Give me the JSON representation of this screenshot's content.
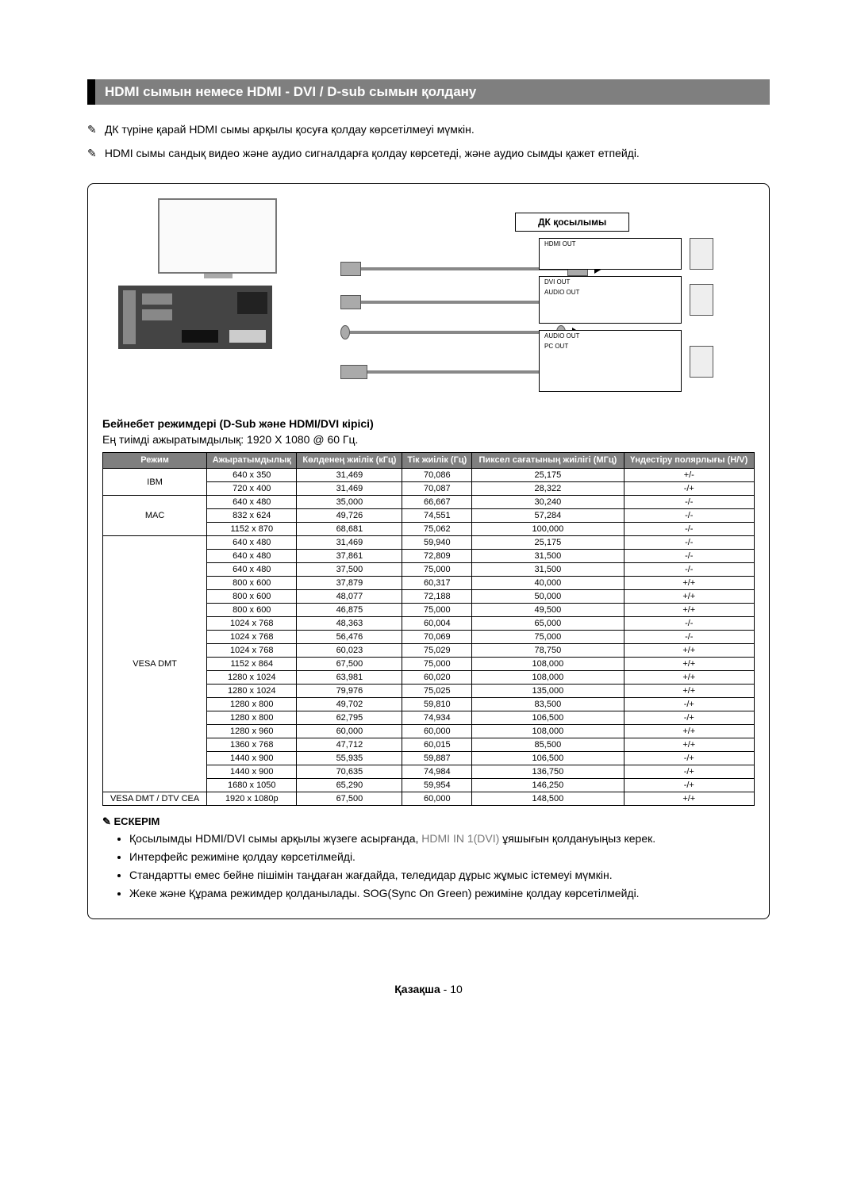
{
  "title": "HDMI сымын немесе HDMI - DVI / D-sub сымын қолдану",
  "intro_notes": [
    "ДК түріне қарай HDMI сымы арқылы қосуға қолдау көрсетілмеуі мүмкін.",
    "HDMI сымы сандық видео және аудио сигналдарға қолдау көрсетеді, және аудио сымды қажет етпейді."
  ],
  "diagram": {
    "dk_label": "ДК қосылымы",
    "port_labels": {
      "hdmi_out": "HDMI OUT",
      "dvi_out": "DVI OUT",
      "audio_out": "AUDIO OUT",
      "pc_out": "PC OUT"
    }
  },
  "sub_heading": "Бейнебет режимдері (D-Sub және HDMI/DVI кірісі)",
  "sub_desc": "Ең тиімді ажыратымдылық: 1920 X 1080 @ 60 Гц.",
  "table": {
    "headers": {
      "mode": "Режим",
      "resolution": "Ажыратымдылық",
      "hfreq": "Көлденең жиілік (кГц)",
      "vfreq": "Тік жиілік (Гц)",
      "pixclock": "Пиксел сағатының жиілігі (МГц)",
      "sync": "Үндестіру полярлығы (H/V)"
    },
    "groups": [
      {
        "mode": "IBM",
        "rows": [
          {
            "res": "640 x 350",
            "h": "31,469",
            "v": "70,086",
            "p": "25,175",
            "s": "+/-"
          },
          {
            "res": "720 x 400",
            "h": "31,469",
            "v": "70,087",
            "p": "28,322",
            "s": "-/+"
          }
        ]
      },
      {
        "mode": "MAC",
        "rows": [
          {
            "res": "640 x 480",
            "h": "35,000",
            "v": "66,667",
            "p": "30,240",
            "s": "-/-"
          },
          {
            "res": "832 x 624",
            "h": "49,726",
            "v": "74,551",
            "p": "57,284",
            "s": "-/-"
          },
          {
            "res": "1152 x 870",
            "h": "68,681",
            "v": "75,062",
            "p": "100,000",
            "s": "-/-"
          }
        ]
      },
      {
        "mode": "VESA DMT",
        "rows": [
          {
            "res": "640 x 480",
            "h": "31,469",
            "v": "59,940",
            "p": "25,175",
            "s": "-/-"
          },
          {
            "res": "640 x 480",
            "h": "37,861",
            "v": "72,809",
            "p": "31,500",
            "s": "-/-"
          },
          {
            "res": "640 x 480",
            "h": "37,500",
            "v": "75,000",
            "p": "31,500",
            "s": "-/-"
          },
          {
            "res": "800 x 600",
            "h": "37,879",
            "v": "60,317",
            "p": "40,000",
            "s": "+/+"
          },
          {
            "res": "800 x 600",
            "h": "48,077",
            "v": "72,188",
            "p": "50,000",
            "s": "+/+"
          },
          {
            "res": "800 x 600",
            "h": "46,875",
            "v": "75,000",
            "p": "49,500",
            "s": "+/+"
          },
          {
            "res": "1024 x 768",
            "h": "48,363",
            "v": "60,004",
            "p": "65,000",
            "s": "-/-"
          },
          {
            "res": "1024 x 768",
            "h": "56,476",
            "v": "70,069",
            "p": "75,000",
            "s": "-/-"
          },
          {
            "res": "1024 x 768",
            "h": "60,023",
            "v": "75,029",
            "p": "78,750",
            "s": "+/+"
          },
          {
            "res": "1152 x 864",
            "h": "67,500",
            "v": "75,000",
            "p": "108,000",
            "s": "+/+"
          },
          {
            "res": "1280 x 1024",
            "h": "63,981",
            "v": "60,020",
            "p": "108,000",
            "s": "+/+"
          },
          {
            "res": "1280 x 1024",
            "h": "79,976",
            "v": "75,025",
            "p": "135,000",
            "s": "+/+"
          },
          {
            "res": "1280 x 800",
            "h": "49,702",
            "v": "59,810",
            "p": "83,500",
            "s": "-/+"
          },
          {
            "res": "1280 x 800",
            "h": "62,795",
            "v": "74,934",
            "p": "106,500",
            "s": "-/+"
          },
          {
            "res": "1280 x 960",
            "h": "60,000",
            "v": "60,000",
            "p": "108,000",
            "s": "+/+"
          },
          {
            "res": "1360 x 768",
            "h": "47,712",
            "v": "60,015",
            "p": "85,500",
            "s": "+/+"
          },
          {
            "res": "1440 x 900",
            "h": "55,935",
            "v": "59,887",
            "p": "106,500",
            "s": "-/+"
          },
          {
            "res": "1440 x 900",
            "h": "70,635",
            "v": "74,984",
            "p": "136,750",
            "s": "-/+"
          },
          {
            "res": "1680 x 1050",
            "h": "65,290",
            "v": "59,954",
            "p": "146,250",
            "s": "-/+"
          }
        ]
      },
      {
        "mode": "VESA DMT / DTV CEA",
        "rows": [
          {
            "res": "1920 x 1080p",
            "h": "67,500",
            "v": "60,000",
            "p": "148,500",
            "s": "+/+"
          }
        ]
      }
    ]
  },
  "note_head": "ЕСКЕРІМ",
  "bullet_notes": [
    {
      "pre": "Қосылымды HDMI/DVI сымы арқылы жүзеге асырғанда, ",
      "gray": "HDMI IN 1(DVI)",
      "post": " ұяшығын қолдануыңыз керек."
    },
    {
      "pre": "Интерфейс режиміне қолдау көрсетілмейді.",
      "gray": "",
      "post": ""
    },
    {
      "pre": "Стандартты емес бейне пішімін таңдаған жағдайда, теледидар дұрыс жұмыс істемеуі мүмкін.",
      "gray": "",
      "post": ""
    },
    {
      "pre": "Жеке және Құрама режимдер қолданылады. SOG(Sync On Green) режиміне қолдау көрсетілмейді.",
      "gray": "",
      "post": ""
    }
  ],
  "footer": {
    "lang": "Қазақша",
    "sep": " - ",
    "page": "10"
  }
}
